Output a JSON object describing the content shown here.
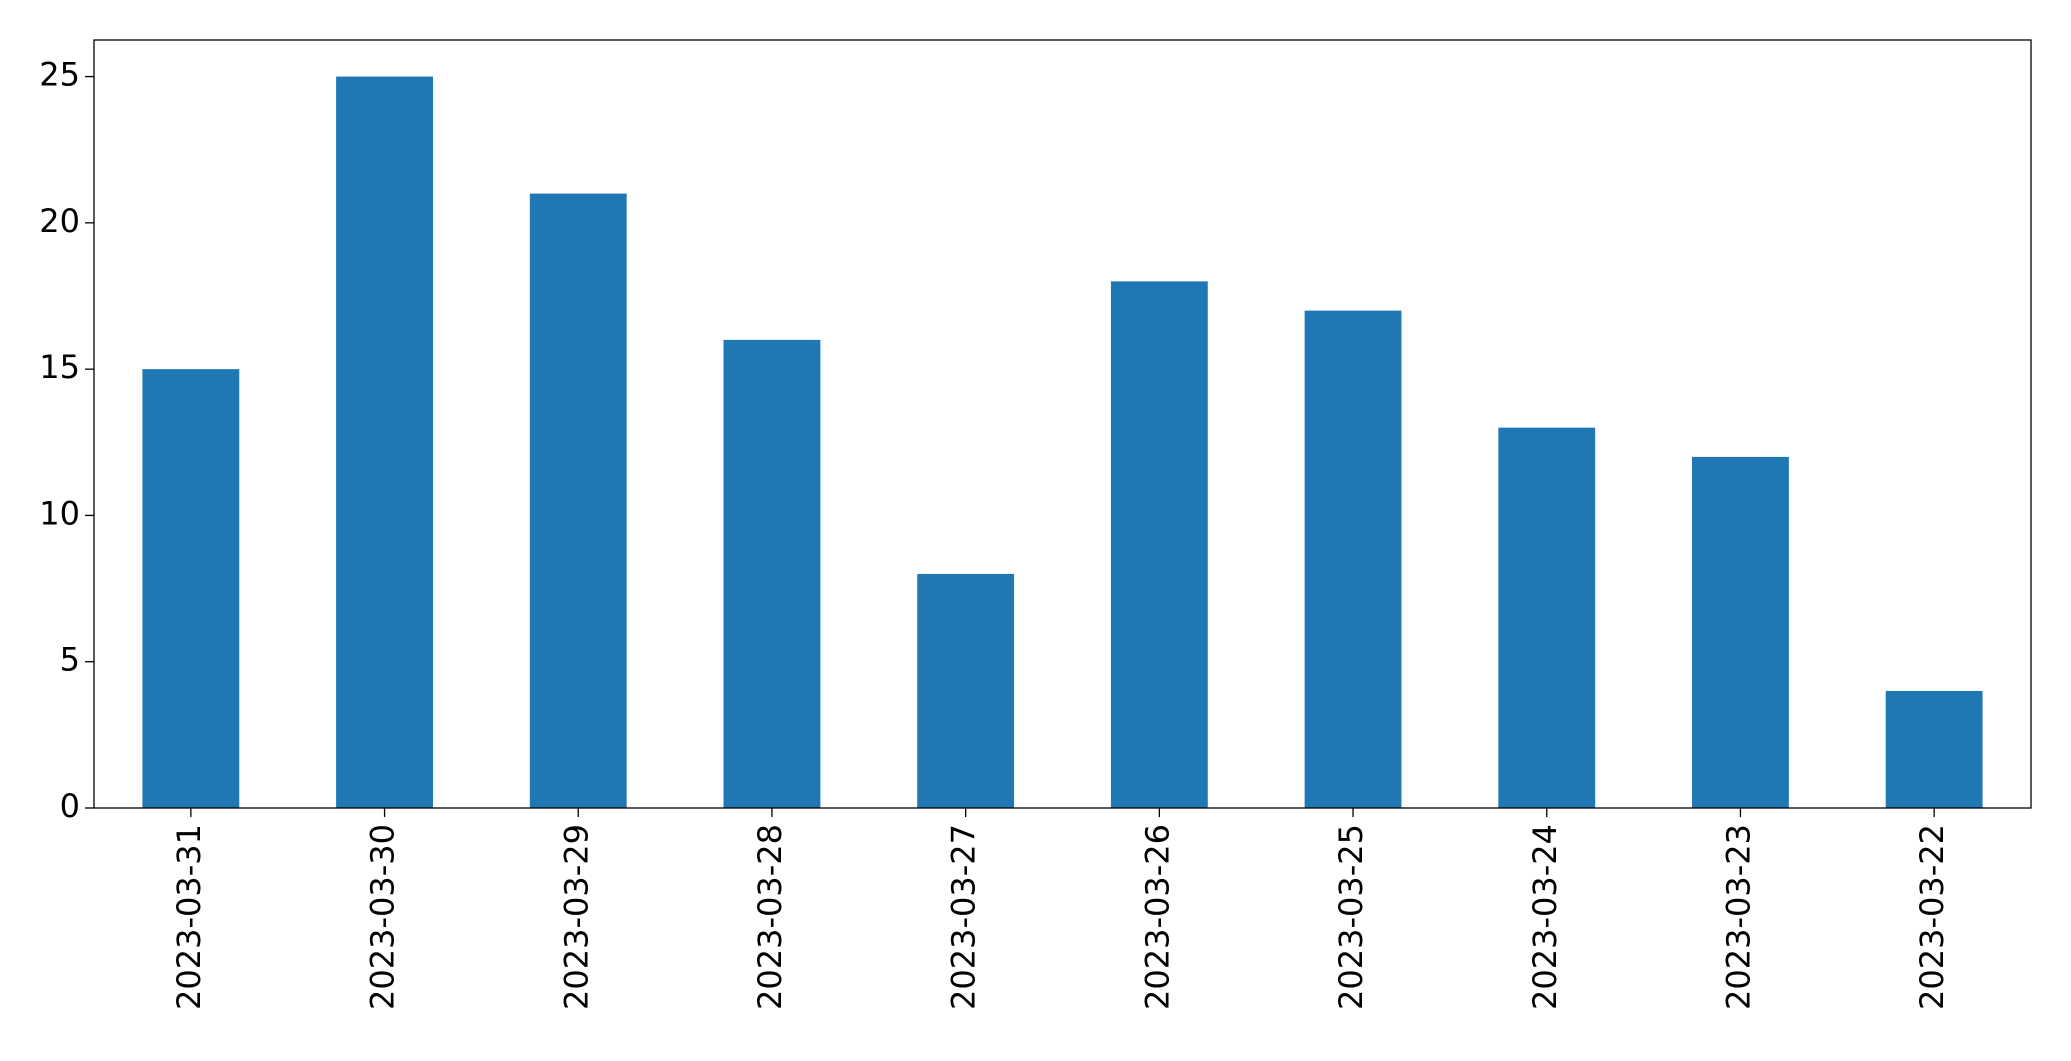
{
  "chart_data": {
    "type": "bar",
    "categories": [
      "2023-03-31",
      "2023-03-30",
      "2023-03-29",
      "2023-03-28",
      "2023-03-27",
      "2023-03-26",
      "2023-03-25",
      "2023-03-24",
      "2023-03-23",
      "2023-03-22"
    ],
    "values": [
      15,
      25,
      21,
      16,
      8,
      18,
      17,
      13,
      12,
      4
    ],
    "color": "#1f77b4",
    "ylim": [
      0,
      26.25
    ],
    "yticks": [
      0,
      5,
      10,
      15,
      20,
      25
    ],
    "grid": false
  }
}
